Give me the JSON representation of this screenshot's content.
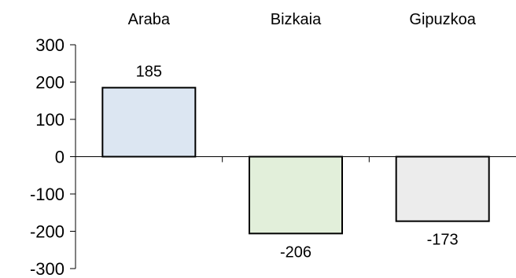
{
  "chart_data": {
    "type": "bar",
    "categories": [
      "Araba",
      "Bizkaia",
      "Gipuzkoa"
    ],
    "values": [
      185,
      -206,
      -173
    ],
    "data_labels": [
      "185",
      "-206",
      "-173"
    ],
    "yticks": [
      "300",
      "200",
      "100",
      "0",
      "-100",
      "-200",
      "-300"
    ],
    "ylim": [
      -300,
      300
    ],
    "category_label_position": "top",
    "grid": false,
    "colors": [
      "#dce6f2",
      "#e2efda",
      "#ececec"
    ],
    "edge_color": "#000000"
  }
}
